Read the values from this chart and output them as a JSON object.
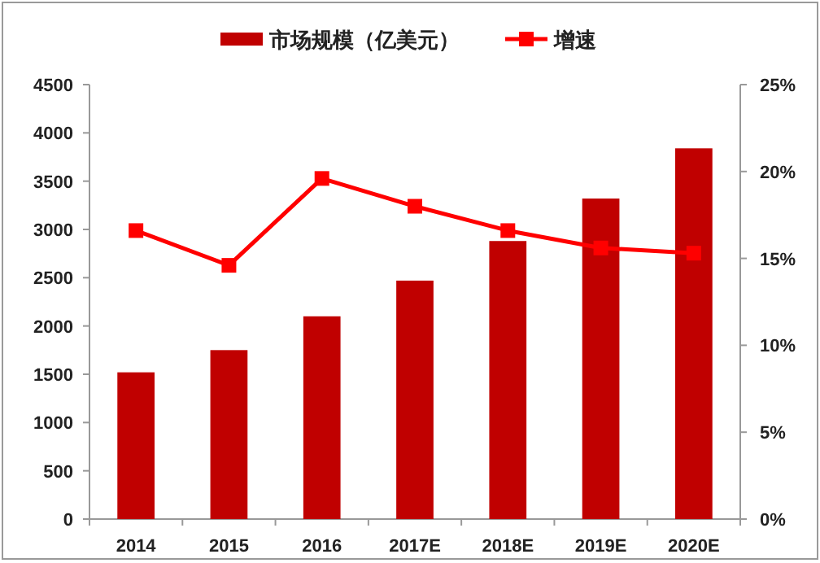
{
  "chart_data": {
    "type": "bar",
    "categories": [
      "2014",
      "2015",
      "2016",
      "2017E",
      "2018E",
      "2019E",
      "2020E"
    ],
    "series": [
      {
        "name": "市场规模（亿美元）",
        "color": "#c00000",
        "values": [
          1520,
          1750,
          2100,
          2470,
          2880,
          3320,
          3840
        ]
      },
      {
        "name": "增速",
        "type": "line",
        "axis": "y2",
        "color": "#ff0000",
        "marker": "square",
        "values": [
          16.6,
          14.6,
          19.6,
          18.0,
          16.6,
          15.6,
          15.3
        ]
      }
    ],
    "ylim": [
      0,
      4500
    ],
    "yticks": [
      0,
      500,
      1000,
      1500,
      2000,
      2500,
      3000,
      3500,
      4000,
      4500
    ],
    "y2lim": [
      0,
      25
    ],
    "y2ticks": [
      {
        "value": 0,
        "label": "0%"
      },
      {
        "value": 5,
        "label": "5%"
      },
      {
        "value": 10,
        "label": "10%"
      },
      {
        "value": 15,
        "label": "15%"
      },
      {
        "value": 20,
        "label": "20%"
      },
      {
        "value": 25,
        "label": "25%"
      }
    ],
    "legend": "top",
    "grid": false
  }
}
